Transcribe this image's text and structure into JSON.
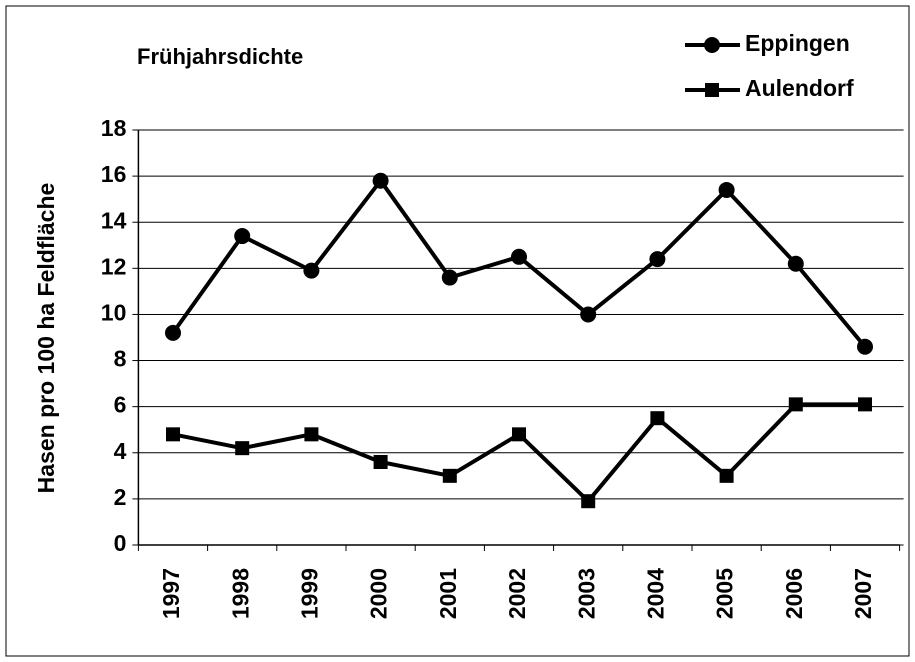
{
  "chart_data": {
    "type": "line",
    "title": "Frühjahrsdichte",
    "y_label": "Hasen pro 100 ha Feldfläche",
    "categories": [
      "1997",
      "1998",
      "1999",
      "2000",
      "2001",
      "2002",
      "2003",
      "2004",
      "2005",
      "2006",
      "2007"
    ],
    "series": [
      {
        "name": "Eppingen",
        "color": "#000000",
        "marker": "circle",
        "values": [
          9.2,
          13.4,
          11.9,
          15.8,
          11.6,
          12.5,
          10.0,
          12.4,
          15.4,
          12.2,
          8.6
        ]
      },
      {
        "name": "Aulendorf",
        "color": "#000000",
        "marker": "square",
        "values": [
          4.8,
          4.2,
          4.8,
          3.6,
          3.0,
          4.8,
          1.9,
          5.5,
          3.0,
          6.1,
          6.1
        ]
      }
    ],
    "ylim": [
      0,
      18
    ],
    "yticks": [
      0,
      2,
      4,
      6,
      8,
      10,
      12,
      14,
      16,
      18
    ],
    "grid": true,
    "legend": "top-right"
  }
}
